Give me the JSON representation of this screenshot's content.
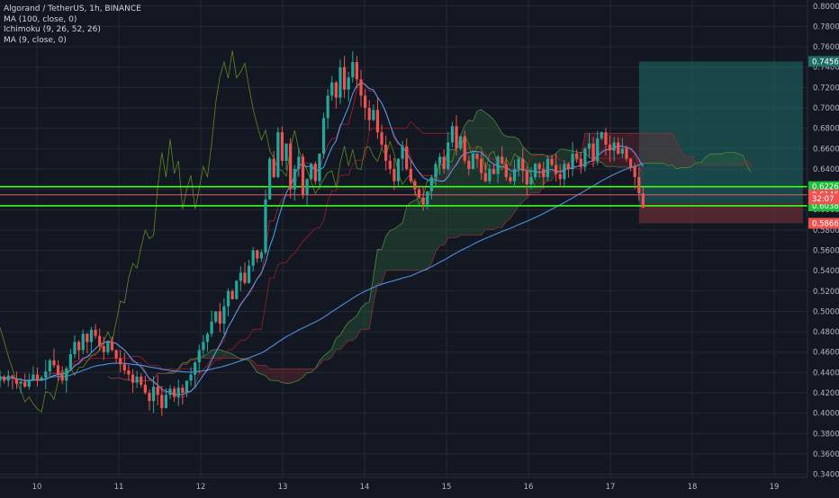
{
  "legend": {
    "title": "Algorand / TetherUS, 1h, BINANCE",
    "ma100": "MA (100, close, 0)",
    "ichimoku": "Ichimoku (9, 26, 52, 26)",
    "ma9": "MA (9, close, 0)"
  },
  "colors": {
    "background": "#131722",
    "grid": "#242833",
    "up_candle": "#26a69a",
    "down_candle": "#ef5350",
    "ma100": "#4a90e2",
    "ma9": "#4fa3f7",
    "tenkan": "#b2202e",
    "kijun": "#9b1b28",
    "chikou": "#5f8a1f",
    "cloud_bull": "#2e6b3e",
    "cloud_bear": "#7a2a33",
    "hline_green": "#39ff14",
    "hline_red": "#e35b63",
    "target_box": "#1f6e68",
    "stop_box": "#7a3038"
  },
  "chart_data": {
    "type": "candlestick",
    "pair": "Algorand / TetherUS",
    "timeframe": "1h",
    "exchange": "BINANCE",
    "x_ticks": [
      "10",
      "11",
      "12",
      "13",
      "14",
      "15",
      "16",
      "17",
      "18",
      "19"
    ],
    "y_ticks": [
      "0.3400",
      "0.3600",
      "0.3800",
      "0.4000",
      "0.4200",
      "0.4400",
      "0.4600",
      "0.4800",
      "0.5000",
      "0.5200",
      "0.5400",
      "0.5600",
      "0.5800",
      "0.6000",
      "0.6200",
      "0.6400",
      "0.6600",
      "0.6800",
      "0.7000",
      "0.7200",
      "0.7400",
      "0.7600",
      "0.7800",
      "0.8000"
    ],
    "ylim": [
      0.337,
      0.806
    ],
    "price_close_path": [
      0.436,
      0.432,
      0.437,
      0.434,
      0.429,
      0.431,
      0.426,
      0.433,
      0.438,
      0.432,
      0.435,
      0.441,
      0.452,
      0.447,
      0.438,
      0.432,
      0.444,
      0.458,
      0.47,
      0.462,
      0.478,
      0.47,
      0.482,
      0.476,
      0.466,
      0.46,
      0.47,
      0.462,
      0.454,
      0.448,
      0.442,
      0.438,
      0.43,
      0.436,
      0.428,
      0.42,
      0.412,
      0.426,
      0.418,
      0.405,
      0.418,
      0.424,
      0.416,
      0.425,
      0.42,
      0.432,
      0.438,
      0.45,
      0.462,
      0.47,
      0.478,
      0.49,
      0.5,
      0.488,
      0.505,
      0.52,
      0.512,
      0.53,
      0.538,
      0.528,
      0.545,
      0.56,
      0.552,
      0.558,
      0.61,
      0.65,
      0.632,
      0.676,
      0.648,
      0.665,
      0.62,
      0.64,
      0.652,
      0.615,
      0.63,
      0.645,
      0.628,
      0.655,
      0.69,
      0.712,
      0.725,
      0.71,
      0.74,
      0.718,
      0.73,
      0.745,
      0.728,
      0.712,
      0.7,
      0.688,
      0.698,
      0.676,
      0.664,
      0.648,
      0.64,
      0.628,
      0.65,
      0.662,
      0.64,
      0.628,
      0.62,
      0.612,
      0.605,
      0.618,
      0.632,
      0.645,
      0.652,
      0.64,
      0.666,
      0.682,
      0.66,
      0.672,
      0.648,
      0.64,
      0.655,
      0.65,
      0.636,
      0.628,
      0.64,
      0.635,
      0.652,
      0.645,
      0.632,
      0.628,
      0.64,
      0.65,
      0.638,
      0.625,
      0.632,
      0.645,
      0.64,
      0.632,
      0.65,
      0.644,
      0.635,
      0.63,
      0.645,
      0.64,
      0.655,
      0.65,
      0.642,
      0.66,
      0.665,
      0.648,
      0.67,
      0.676,
      0.664,
      0.658,
      0.666,
      0.655,
      0.66,
      0.65,
      0.642,
      0.632,
      0.616,
      0.602
    ],
    "price_labels": [
      {
        "price": 0.7456,
        "text": "0.7456",
        "bg": "#1f6e68",
        "fg": "#ffffff"
      },
      {
        "price": 0.6226,
        "text": "0.6226",
        "bg": "#1fbf3a",
        "fg": "#ffffff"
      },
      {
        "price": 0.6146,
        "text": "0.6146",
        "bg": "#ef5350",
        "fg": "#ffffff"
      },
      {
        "price": 0.6063,
        "text": "0.6063",
        "bg": "#3c4150",
        "fg": "#ffffff"
      },
      {
        "price": 0.6038,
        "text": "0.6038",
        "bg": "#1fbf3a",
        "fg": "#ffffff"
      },
      {
        "price": 0.5866,
        "text": "0.5866",
        "bg": "#ef5350",
        "fg": "#ffffff"
      }
    ],
    "countdown_label": {
      "price": 0.6106,
      "text": "32:07",
      "bg": "#ef5350",
      "fg": "#ffffff"
    },
    "horizontal_lines": [
      {
        "price": 0.6226,
        "color": "hline_green"
      },
      {
        "price": 0.6038,
        "color": "hline_green"
      },
      {
        "price": 0.6146,
        "color": "hline_red"
      }
    ],
    "position_box": {
      "entry": 0.6063,
      "target": 0.7456,
      "stop": 0.5866,
      "start_day": 17.35,
      "end_day": 19.35
    }
  }
}
